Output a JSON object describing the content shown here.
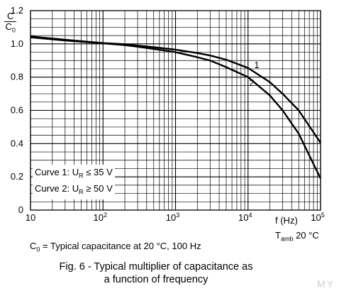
{
  "chart_data": {
    "type": "line",
    "x_scale": "log",
    "xlim": [
      10,
      100000
    ],
    "ylim": [
      0,
      1.2
    ],
    "y_ticks": [
      "0",
      "0.2",
      "0.4",
      "0.6",
      "0.8",
      "1.0",
      "1.2"
    ],
    "x_ticks": [
      {
        "base": "10",
        "exp": ""
      },
      {
        "base": "10",
        "exp": "2"
      },
      {
        "base": "10",
        "exp": "3"
      },
      {
        "base": "10",
        "exp": "4"
      },
      {
        "base": "10",
        "exp": "5"
      }
    ],
    "ylabel_num": "C",
    "ylabel_den": "C",
    "ylabel_den_sub": "0",
    "xlabel": "f (Hz)",
    "temp_label": "T",
    "temp_sub": "amb",
    "temp_value": " 20 °C",
    "grid": true,
    "series": [
      {
        "name": "1",
        "x": [
          10,
          30,
          100,
          200,
          300,
          500,
          1000,
          2000,
          3000,
          5000,
          10000,
          20000,
          30000,
          50000,
          100000
        ],
        "y": [
          1.045,
          1.025,
          1.005,
          0.998,
          0.99,
          0.98,
          0.965,
          0.945,
          0.93,
          0.905,
          0.855,
          0.77,
          0.7,
          0.6,
          0.405
        ]
      },
      {
        "name": "2",
        "x": [
          10,
          30,
          100,
          200,
          300,
          500,
          1000,
          2000,
          3000,
          5000,
          10000,
          20000,
          30000,
          50000,
          100000
        ],
        "y": [
          1.04,
          1.02,
          1.003,
          0.993,
          0.983,
          0.97,
          0.95,
          0.92,
          0.9,
          0.86,
          0.8,
          0.69,
          0.6,
          0.46,
          0.19
        ]
      }
    ],
    "legend_box": [
      {
        "prefix": "Curve 1: U",
        "sub": "R",
        "rel": " ≤ 35 V"
      },
      {
        "prefix": "Curve 2: U",
        "sub": "R",
        "rel": " ≥ 50 V"
      }
    ]
  },
  "footnote": {
    "main": "C",
    "sub": "0",
    "rest": " = Typical capacitance at 20 °C, 100 Hz"
  },
  "caption": {
    "line1": "Fig. 6 - Typical multiplier of capacitance as",
    "line2": "a function of frequency"
  },
  "watermark": "MY"
}
